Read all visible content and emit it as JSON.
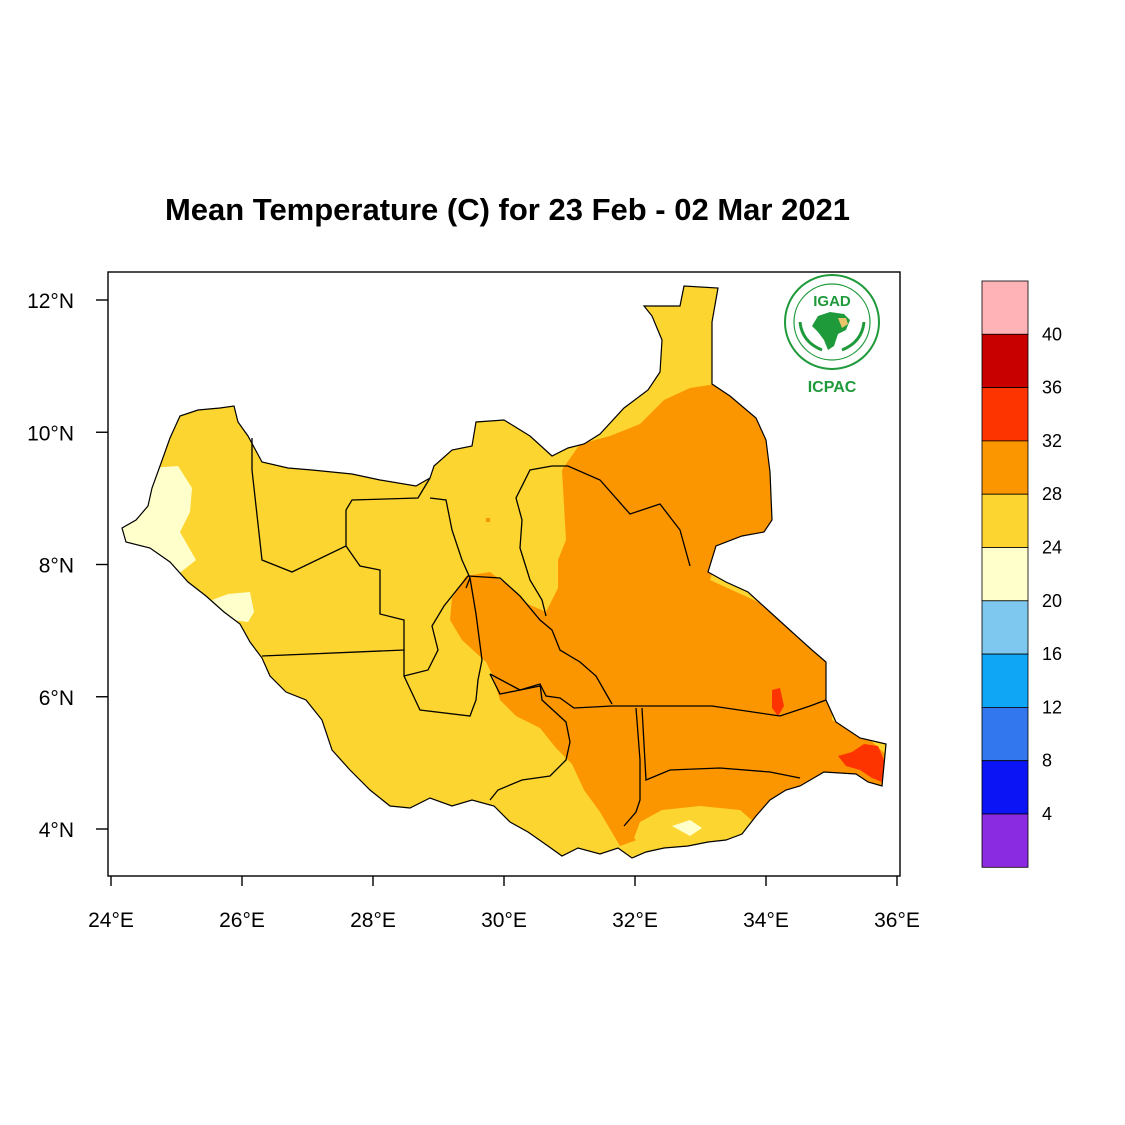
{
  "title": "Mean Temperature (C) for 23 Feb - 02 Mar 2021",
  "logo": {
    "top_text": "IGAD",
    "bottom_text": "ICPAC",
    "color": "#1f9a3b"
  },
  "map": {
    "x_axis": {
      "range": [
        24,
        36
      ],
      "ticks": [
        24,
        26,
        28,
        30,
        32,
        34,
        36
      ],
      "tick_labels": [
        "24°E",
        "26°E",
        "28°E",
        "30°E",
        "32°E",
        "34°E",
        "36°E"
      ]
    },
    "y_axis": {
      "range": [
        3.4,
        12.4
      ],
      "ticks": [
        4,
        6,
        8,
        10,
        12
      ],
      "tick_labels": [
        "4°N",
        "6°N",
        "8°N",
        "10°N",
        "12°N"
      ]
    },
    "region_colors": {
      "t20_24": "#ffffcc",
      "t24_28": "#fdd530",
      "t28_32": "#fb9500",
      "t32_36": "#fe3400"
    }
  },
  "colorbar": {
    "colors": [
      "#ffb3b6",
      "#c80000",
      "#fe3400",
      "#fb9500",
      "#fdd530",
      "#ffffcc",
      "#7ec8f0",
      "#0fa6f5",
      "#3377ee",
      "#0a14f5",
      "#8a2be2"
    ],
    "labels": [
      "40",
      "36",
      "32",
      "28",
      "24",
      "20",
      "16",
      "12",
      "8",
      "4"
    ]
  }
}
